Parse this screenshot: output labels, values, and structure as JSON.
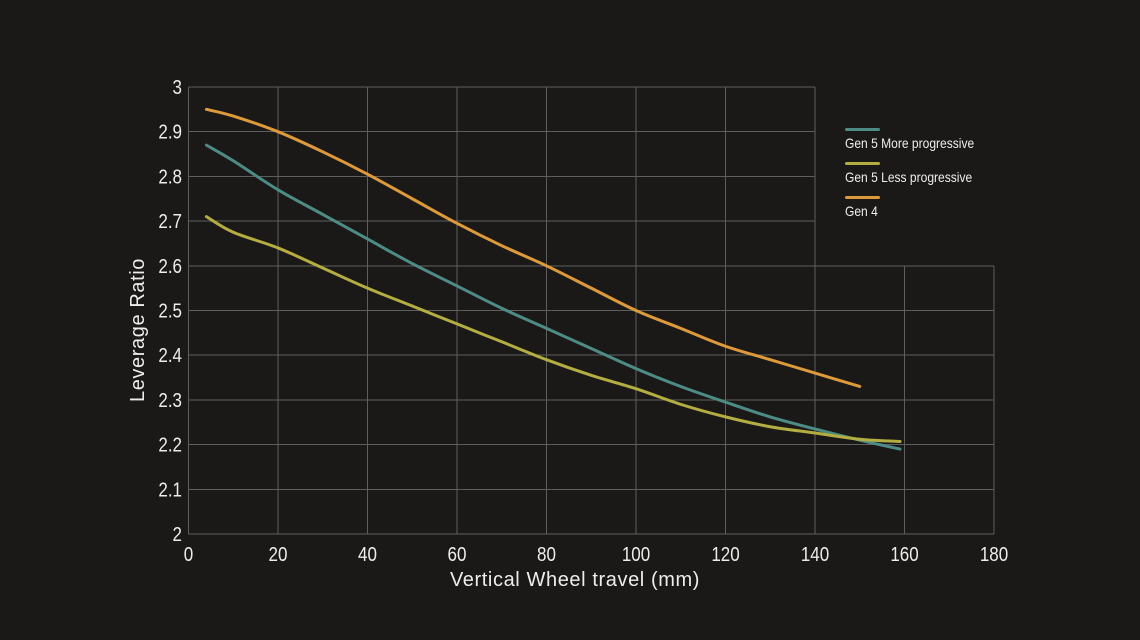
{
  "chart_data": {
    "type": "line",
    "title": "",
    "xlabel": "Vertical Wheel travel (mm)",
    "ylabel": "Leverage Ratio",
    "xlim": [
      0,
      180
    ],
    "ylim": [
      2,
      3
    ],
    "x_ticks": [
      "0",
      "20",
      "40",
      "60",
      "80",
      "100",
      "120",
      "140",
      "160",
      "180"
    ],
    "y_ticks": [
      "3",
      "2.9",
      "2.8",
      "2.7",
      "2.6",
      "2.5",
      "2.4",
      "2.3",
      "2.2",
      "2.1",
      "2"
    ],
    "grid": true,
    "legend_position": "right-inside",
    "series": [
      {
        "name": "Gen 5 More progressive",
        "color": "#4D8C86",
        "x": [
          4,
          10,
          20,
          30,
          40,
          50,
          60,
          70,
          80,
          90,
          100,
          110,
          120,
          130,
          140,
          150,
          159
        ],
        "y": [
          2.87,
          2.835,
          2.77,
          2.715,
          2.66,
          2.605,
          2.555,
          2.505,
          2.46,
          2.415,
          2.37,
          2.33,
          2.295,
          2.262,
          2.235,
          2.21,
          2.19
        ]
      },
      {
        "name": "Gen 5 Less progressive",
        "color": "#B3AD42",
        "x": [
          4,
          10,
          20,
          30,
          40,
          50,
          60,
          70,
          80,
          90,
          100,
          110,
          120,
          130,
          140,
          150,
          159
        ],
        "y": [
          2.71,
          2.675,
          2.64,
          2.595,
          2.55,
          2.51,
          2.47,
          2.43,
          2.39,
          2.355,
          2.325,
          2.29,
          2.262,
          2.24,
          2.226,
          2.212,
          2.207
        ]
      },
      {
        "name": "Gen 4",
        "color": "#DD9A3B",
        "x": [
          4,
          10,
          20,
          30,
          40,
          50,
          60,
          70,
          80,
          90,
          100,
          110,
          120,
          130,
          140,
          150
        ],
        "y": [
          2.95,
          2.935,
          2.9,
          2.855,
          2.805,
          2.75,
          2.695,
          2.645,
          2.6,
          2.55,
          2.5,
          2.46,
          2.42,
          2.39,
          2.36,
          2.33
        ]
      }
    ],
    "colors": {
      "background": "#1B1918",
      "grid": "#5E5E5C",
      "text": "#EDEDEB"
    }
  }
}
